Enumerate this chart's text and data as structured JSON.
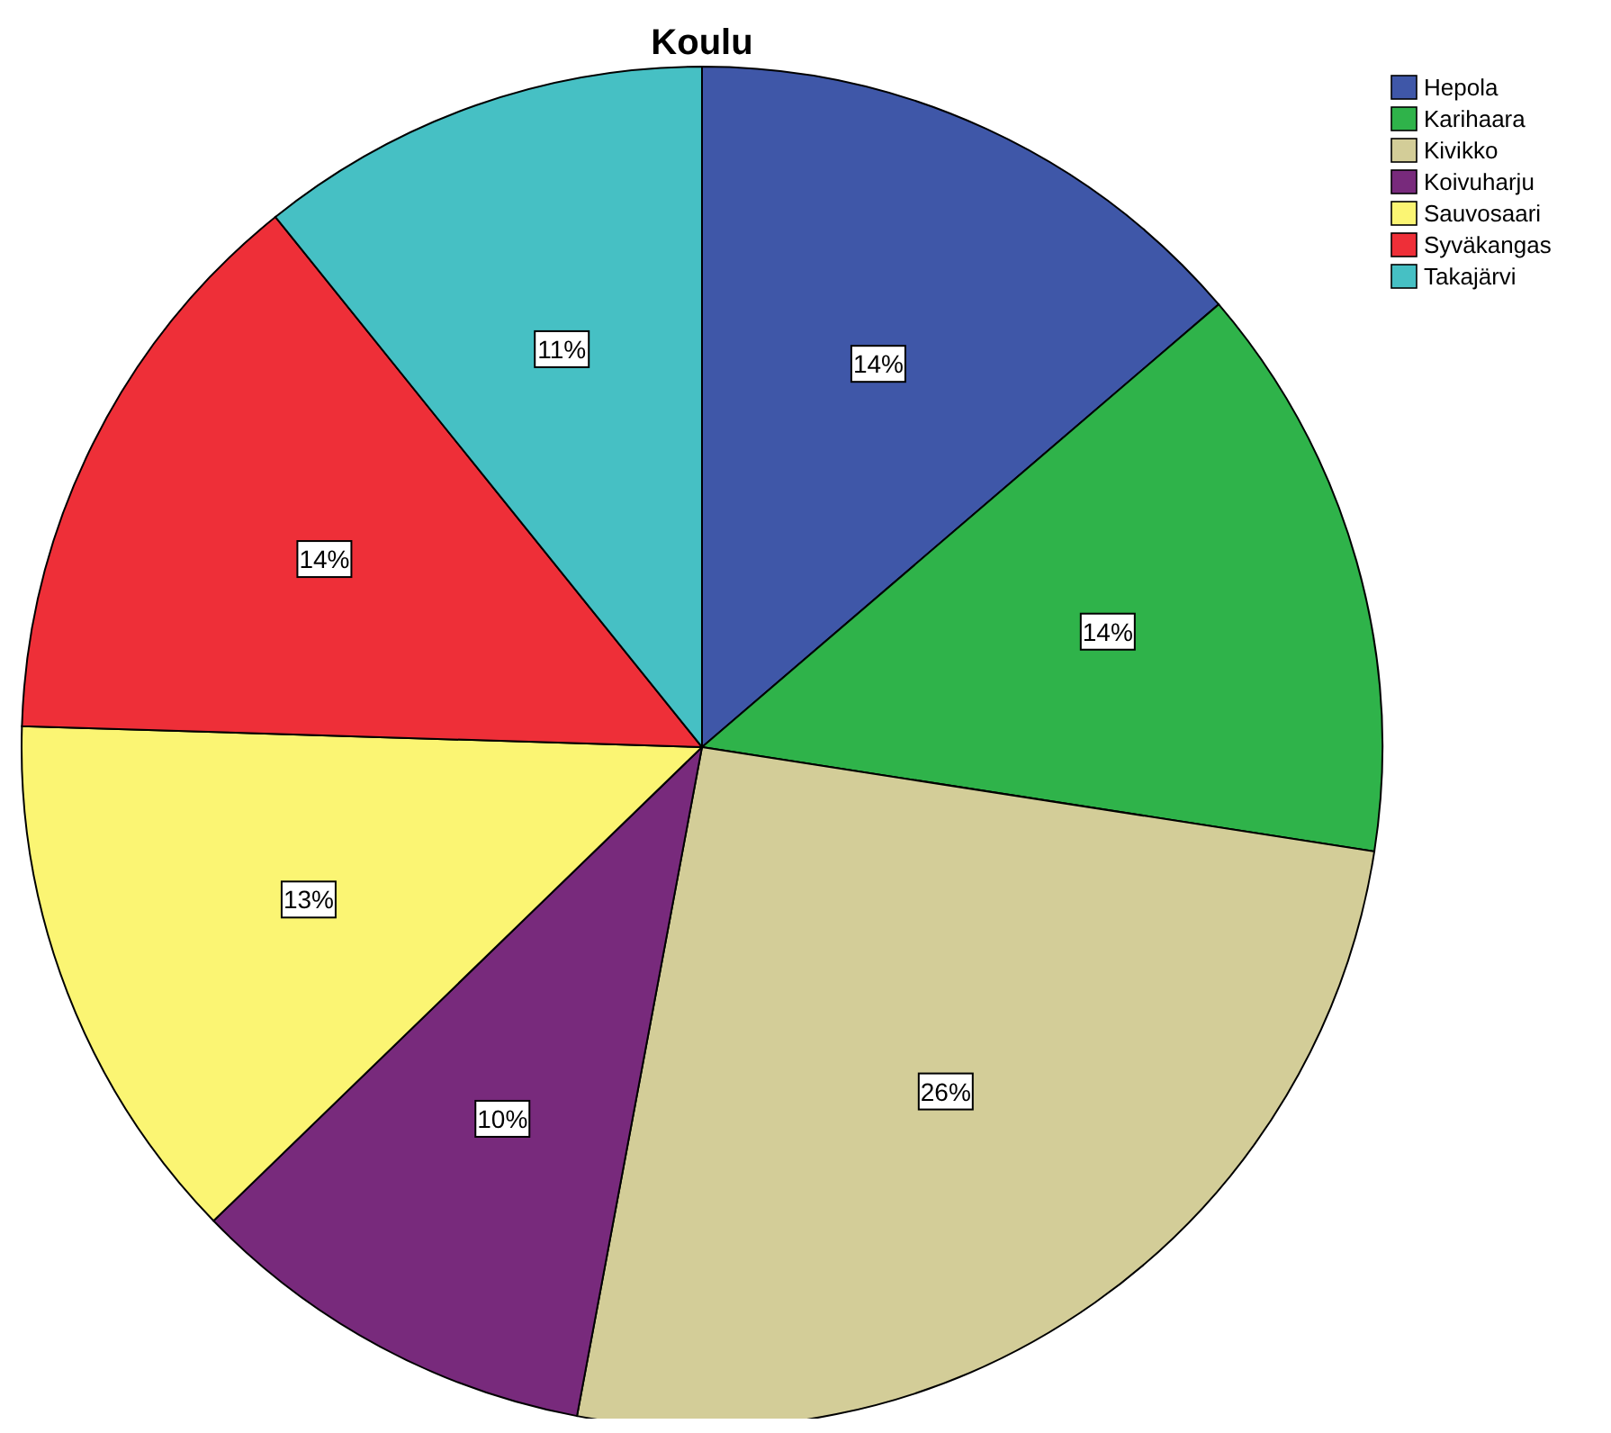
{
  "chart_data": {
    "type": "pie",
    "title": "Koulu",
    "categories": [
      "Hepola",
      "Karihaara",
      "Kivikko",
      "Koivuharju",
      "Sauvosaari",
      "Syväkangas",
      "Takajärvi"
    ],
    "values": [
      14,
      14,
      26,
      10,
      13,
      14,
      11
    ],
    "value_labels": [
      "14%",
      "14%",
      "26%",
      "10%",
      "13%",
      "14%",
      "11%"
    ],
    "colors": [
      "#3f57a8",
      "#2fb34a",
      "#d3cd98",
      "#782a7c",
      "#fbf573",
      "#ee2f38",
      "#46c0c4"
    ],
    "legend": "top right"
  }
}
